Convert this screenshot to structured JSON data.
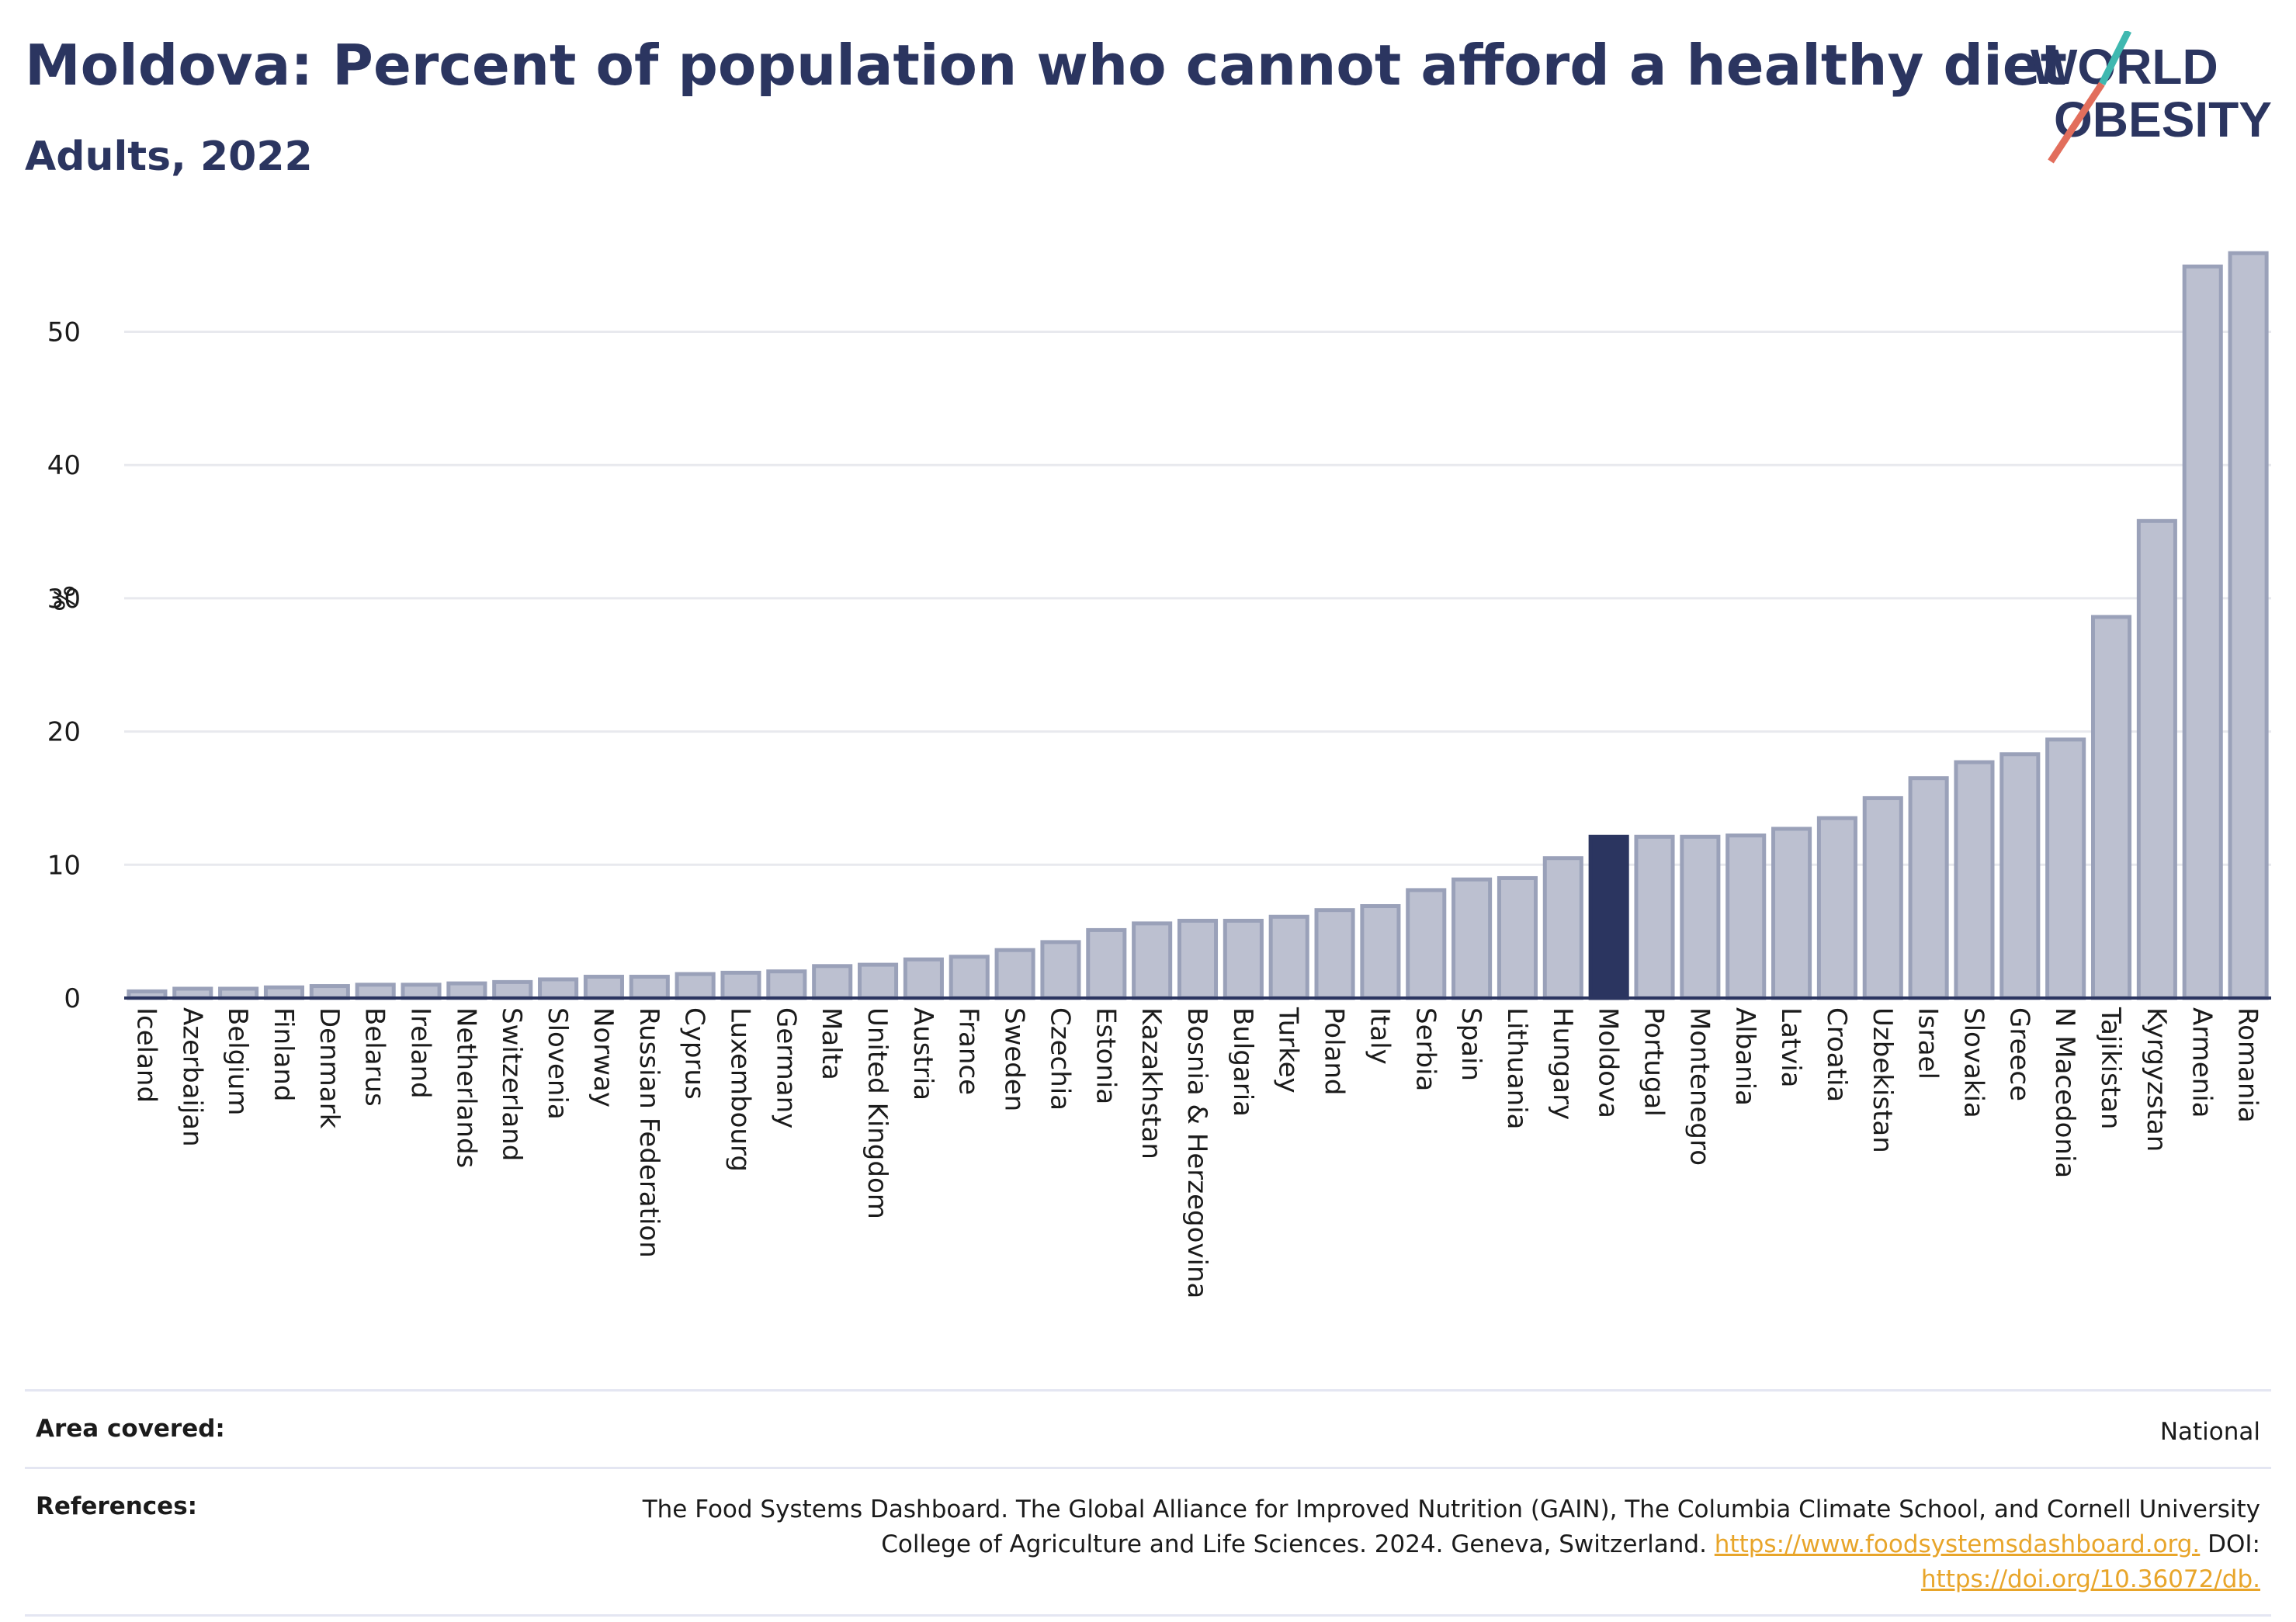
{
  "header": {
    "title": "Moldova: Percent of population who cannot afford a healthy diet",
    "subtitle": "Adults, 2022"
  },
  "logo": {
    "line1": "WORLD",
    "line2": "OBESITY",
    "slash_color_top": "#3fb8b0",
    "slash_color_bottom": "#e26e5c"
  },
  "colors": {
    "bar": "#bcc0d0",
    "bar_stroke": "#9aa1b9",
    "highlight": "#2b3560",
    "grid": "#e8e9ee",
    "axis": "#2b3560",
    "text_dark": "#2b3560",
    "link": "#e8a52a"
  },
  "chart_data": {
    "type": "bar",
    "title": "Moldova: Percent of population who cannot afford a healthy diet",
    "subtitle": "Adults, 2022",
    "xlabel": "",
    "ylabel": "%",
    "ylim": [
      0,
      57
    ],
    "yticks": [
      0,
      10,
      20,
      30,
      40,
      50
    ],
    "grid": true,
    "highlight": "Moldova",
    "categories": [
      "Iceland",
      "Azerbaijan",
      "Belgium",
      "Finland",
      "Denmark",
      "Belarus",
      "Ireland",
      "Netherlands",
      "Switzerland",
      "Slovenia",
      "Norway",
      "Russian Federation",
      "Cyprus",
      "Luxembourg",
      "Germany",
      "Malta",
      "United Kingdom",
      "Austria",
      "France",
      "Sweden",
      "Czechia",
      "Estonia",
      "Kazakhstan",
      "Bosnia & Herzegovina",
      "Bulgaria",
      "Turkey",
      "Poland",
      "Italy",
      "Serbia",
      "Spain",
      "Lithuania",
      "Hungary",
      "Moldova",
      "Portugal",
      "Montenegro",
      "Albania",
      "Latvia",
      "Croatia",
      "Uzbekistan",
      "Israel",
      "Slovakia",
      "Greece",
      "N Macedonia",
      "Tajikistan",
      "Kyrgyzstan",
      "Armenia",
      "Romania"
    ],
    "values": [
      0.5,
      0.7,
      0.7,
      0.8,
      0.9,
      1.0,
      1.0,
      1.1,
      1.2,
      1.4,
      1.6,
      1.6,
      1.8,
      1.9,
      2.0,
      2.4,
      2.5,
      2.9,
      3.1,
      3.6,
      4.2,
      5.1,
      5.6,
      5.8,
      5.8,
      6.1,
      6.6,
      6.9,
      8.1,
      8.9,
      9.0,
      10.5,
      12.1,
      12.1,
      12.1,
      12.2,
      12.7,
      13.5,
      15.0,
      16.5,
      17.7,
      18.3,
      19.4,
      28.6,
      35.8,
      54.9,
      55.9
    ]
  },
  "footer": {
    "area_label": "Area covered:",
    "area_value": "National",
    "ref_label": "References:",
    "ref_line1": "The Food Systems Dashboard. The Global Alliance for Improved Nutrition (GAIN), The Columbia Climate School, and Cornell University",
    "ref_line2_text": "College of Agriculture and Life Sciences. 2024. Geneva, Switzerland.",
    "ref_link1": "https://www.foodsystemsdashboard.org.",
    "ref_doi_label": "DOI:",
    "ref_link2": "https://doi.org/10.36072/db."
  }
}
